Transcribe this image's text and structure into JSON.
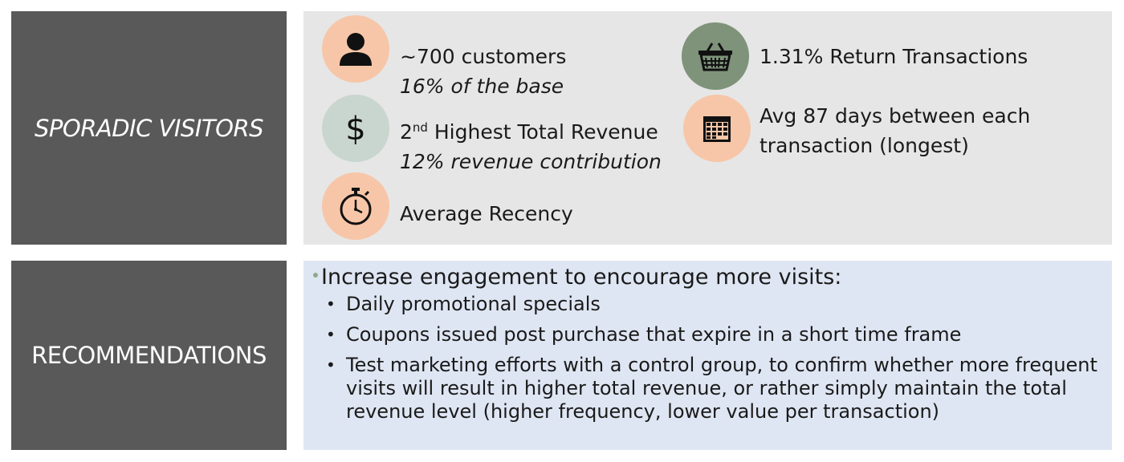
{
  "segment": {
    "title": "SPORADIC VISITORS",
    "stats": [
      {
        "icon": "person-icon",
        "color": "#f7c6a8",
        "main": "~700 customers",
        "sub": "16% of the base"
      },
      {
        "icon": "dollar-icon",
        "color": "#c9d6cf",
        "main_sup": "nd",
        "main_prefix": "2",
        "main_rest": " Highest Total Revenue",
        "sub": "12% revenue contribution"
      },
      {
        "icon": "stopwatch-icon",
        "color": "#f7c6a8",
        "main": "Average Recency"
      },
      {
        "icon": "basket-icon",
        "color": "#7e937a",
        "main": "1.31% Return Transactions"
      },
      {
        "icon": "calendar-icon",
        "color": "#f7c6a8",
        "main": "Avg 87 days between each",
        "main2": "transaction (longest)"
      }
    ]
  },
  "recommendations": {
    "title": "RECOMMENDATIONS",
    "heading": "Increase engagement to encourage more visits:",
    "items": [
      "Daily promotional specials",
      "Coupons issued post purchase that expire in a short time frame",
      "Test marketing efforts with a control group, to confirm whether more frequent visits will result in higher total revenue, or rather simply maintain the total revenue level (higher frequency, lower value per transaction)"
    ]
  }
}
